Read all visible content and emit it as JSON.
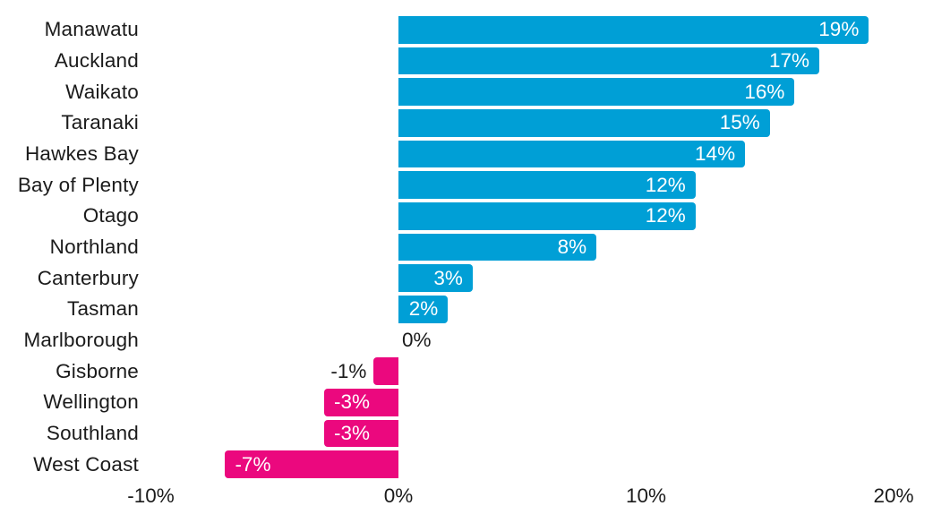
{
  "chart_data": {
    "type": "bar",
    "orientation": "horizontal",
    "title": "",
    "xlabel": "",
    "ylabel": "",
    "grid": false,
    "legend": false,
    "categories": [
      "Manawatu",
      "Auckland",
      "Waikato",
      "Taranaki",
      "Hawkes Bay",
      "Bay of Plenty",
      "Otago",
      "Northland",
      "Canterbury",
      "Tasman",
      "Marlborough",
      "Gisborne",
      "Wellington",
      "Southland",
      "West Coast"
    ],
    "values": [
      19,
      17,
      16,
      15,
      14,
      12,
      12,
      8,
      3,
      2,
      0,
      -1,
      -3,
      -3,
      -7
    ],
    "bar_labels": [
      "19%",
      "17%",
      "16%",
      "15%",
      "14%",
      "12%",
      "12%",
      "8%",
      "3%",
      "2%",
      "0%",
      "-1%",
      "-3%",
      "-3%",
      "-7%"
    ],
    "x_ticks": [
      {
        "value": -10,
        "label": "-10%"
      },
      {
        "value": 0,
        "label": "0%"
      },
      {
        "value": 10,
        "label": "10%"
      },
      {
        "value": 20,
        "label": "20%"
      }
    ],
    "xlim": [
      -10,
      20
    ],
    "colors": {
      "positive_bar": "#009FD6",
      "negative_bar": "#EB087E",
      "label_inside": "#ffffff",
      "label_outside": "#1b1b1b"
    }
  }
}
